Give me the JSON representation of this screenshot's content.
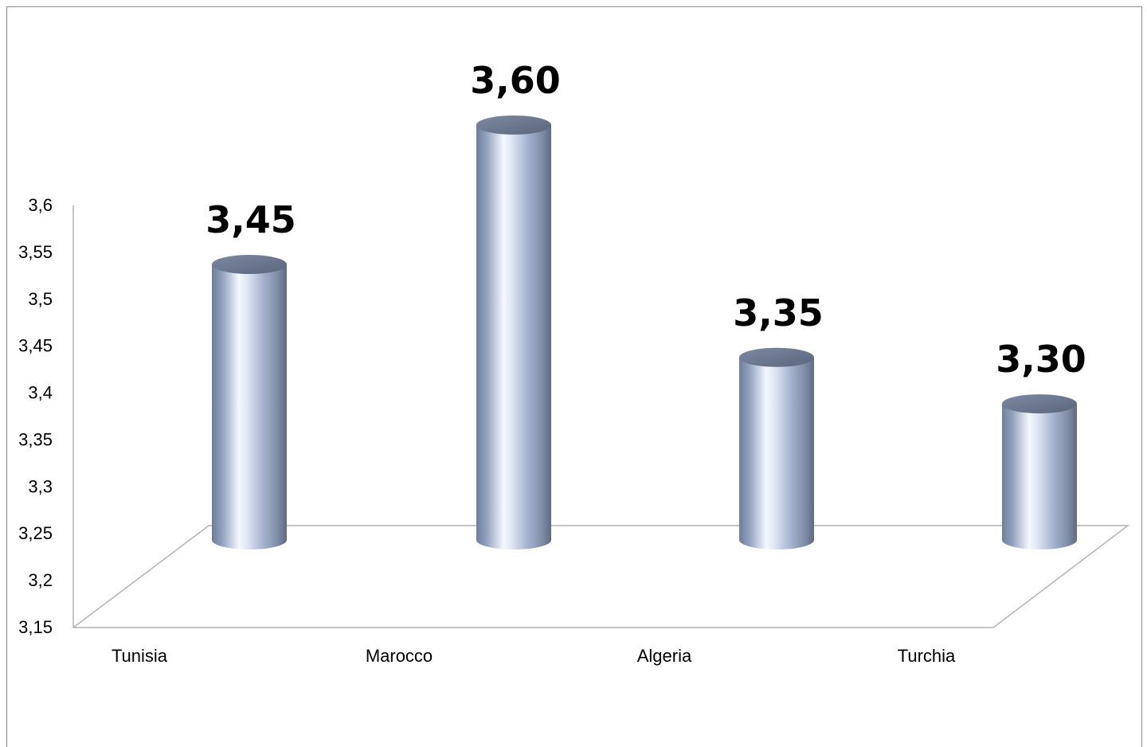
{
  "chart_data": {
    "type": "bar",
    "style": "3d-cylinder",
    "categories": [
      "Tunisia",
      "Marocco",
      "Algeria",
      "Turchia"
    ],
    "values": [
      3.45,
      3.6,
      3.35,
      3.3
    ],
    "data_labels": [
      "3,45",
      "3,60",
      "3,35",
      "3,30"
    ],
    "ylim": [
      3.15,
      3.6
    ],
    "yticks": [
      3.15,
      3.2,
      3.25,
      3.3,
      3.35,
      3.4,
      3.45,
      3.5,
      3.55,
      3.6
    ],
    "ytick_labels": [
      "3,15",
      "3,2",
      "3,25",
      "3,3",
      "3,35",
      "3,4",
      "3,45",
      "3,5",
      "3,55",
      "3,6"
    ],
    "grid": false,
    "legend": "none",
    "bar_color": "#a9b8d6"
  }
}
